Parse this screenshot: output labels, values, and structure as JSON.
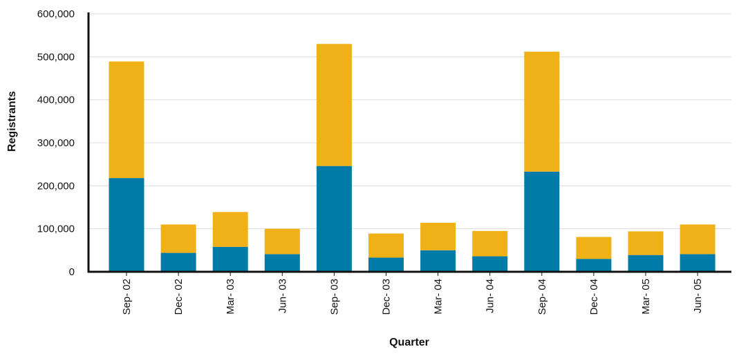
{
  "chart_data": {
    "type": "bar",
    "stacked": true,
    "categories": [
      "Sep- 02",
      "Dec- 02",
      "Mar- 03",
      "Jun- 03",
      "Sep- 03",
      "Dec- 03",
      "Mar- 04",
      "Jun- 04",
      "Sep- 04",
      "Dec- 04",
      "Mar- 05",
      "Jun- 05"
    ],
    "series": [
      {
        "color": "#007ba7",
        "values": [
          218000,
          44000,
          58000,
          41000,
          246000,
          33000,
          50000,
          36000,
          233000,
          30000,
          39000,
          41000
        ]
      },
      {
        "color": "#f0b017",
        "values": [
          271000,
          66000,
          81000,
          59000,
          284000,
          56000,
          64000,
          59000,
          279000,
          51000,
          55000,
          69000
        ]
      }
    ],
    "xlabel": "Quarter",
    "ylabel": "Registrants",
    "ylim": [
      0,
      600000
    ],
    "yticks": [
      0,
      100000,
      200000,
      300000,
      400000,
      500000,
      600000
    ],
    "ytick_labels": [
      "0",
      "100,000",
      "200,000",
      "300,000",
      "400,000",
      "500,000",
      "600,000"
    ],
    "grid": true,
    "legend": "none"
  }
}
